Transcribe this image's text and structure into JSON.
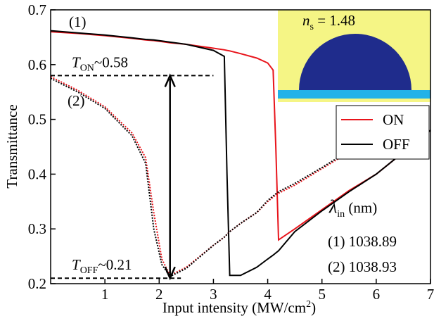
{
  "chart_data": {
    "type": "line",
    "xlabel": {
      "text": "Input intensity (MW/cm",
      "sup": "2",
      "end": ")"
    },
    "ylabel": "Transmittance",
    "xlim": [
      0,
      7
    ],
    "ylim": [
      0.2,
      0.7
    ],
    "xticks": [
      1,
      2,
      3,
      4,
      5,
      6,
      7
    ],
    "yticks": [
      0.2,
      0.3,
      0.4,
      0.5,
      0.6,
      0.7
    ],
    "x": [
      0,
      0.5,
      1,
      1.5,
      1.75,
      1.9,
      2.05,
      2.2,
      2.5,
      3,
      3.2,
      3.25,
      3.3,
      3.5,
      3.8,
      4,
      4.1,
      4.15,
      4.2,
      4.5,
      5,
      5.5,
      6,
      6.5,
      7
    ],
    "curves": [
      {
        "label": "(1)",
        "dashed": false,
        "series": [
          {
            "name": "ON",
            "color": "#e8141b",
            "values": [
              0.66,
              0.657,
              0.653,
              0.648,
              0.645,
              0.644,
              0.642,
              0.64,
              0.637,
              0.63,
              0.627,
              0.626,
              0.625,
              0.62,
              0.612,
              0.603,
              0.59,
              0.45,
              0.28,
              0.3,
              0.335,
              0.37,
              0.4,
              0.44,
              0.48
            ]
          },
          {
            "name": "OFF",
            "color": "#000000",
            "values": [
              0.662,
              0.658,
              0.654,
              0.649,
              0.646,
              0.645,
              0.643,
              0.641,
              0.637,
              0.626,
              0.615,
              0.4,
              0.215,
              0.215,
              0.23,
              0.245,
              0.252,
              0.256,
              0.26,
              0.295,
              0.333,
              0.368,
              0.4,
              0.44,
              0.48
            ]
          }
        ]
      },
      {
        "label": "(2)",
        "dashed": true,
        "series": [
          {
            "color": "#e8141b",
            "values": [
              0.578,
              0.553,
              0.523,
              0.475,
              0.43,
              0.33,
              0.245,
              0.215,
              0.23,
              0.27,
              0.285,
              0.29,
              0.295,
              0.31,
              0.33,
              0.35,
              0.358,
              0.362,
              0.365,
              0.38,
              0.41,
              0.44,
              0.465,
              null,
              null
            ]
          },
          {
            "color": "#000000",
            "values": [
              0.575,
              0.55,
              0.52,
              0.47,
              0.42,
              0.3,
              0.235,
              0.213,
              0.228,
              0.27,
              0.285,
              0.29,
              0.295,
              0.31,
              0.33,
              0.352,
              0.36,
              0.364,
              0.368,
              0.383,
              0.412,
              0.443,
              0.47,
              null,
              null
            ]
          }
        ]
      }
    ],
    "annotations": [
      {
        "symbol": "T",
        "subscript": "ON",
        "text": "~0.58",
        "y": 0.58,
        "x_span": [
          0,
          3
        ]
      },
      {
        "symbol": "T",
        "subscript": "OFF",
        "text": "~0.21",
        "y": 0.21,
        "x_span": [
          0,
          2.4
        ]
      }
    ],
    "arrow": {
      "x": 2.2,
      "y_span": [
        0.21,
        0.58
      ]
    },
    "wavelength": {
      "symbol": "λ",
      "subscript": "in",
      "unit": " (nm)",
      "lines": [
        "(1) 1038.89",
        "(2) 1038.93"
      ]
    },
    "inset": {
      "symbol": "n",
      "subscript": "s",
      "text": " = 1.48"
    }
  }
}
